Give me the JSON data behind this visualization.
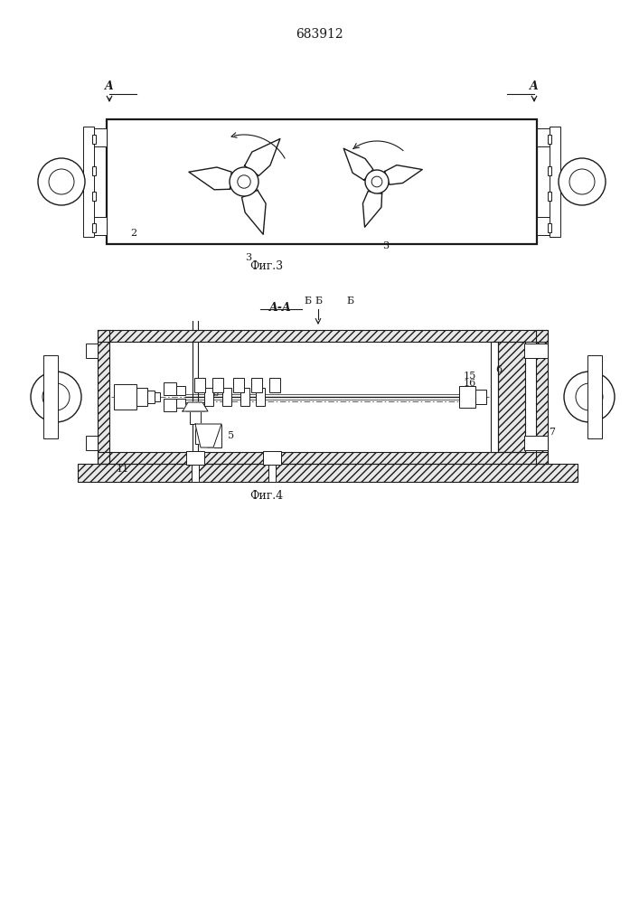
{
  "bg_color": "#ffffff",
  "line_color": "#1a1a1a",
  "title": "683912",
  "fig3_label": "Фиг.3",
  "fig4_label": "Фиг.4",
  "section_label": "A-A",
  "label_A_left": "A",
  "label_A_right": "A",
  "label_2": "2",
  "label_3a": "3",
  "label_3b": "3",
  "label_5": "5",
  "label_6": "6",
  "label_7": "7",
  "label_B": "Б",
  "label_11": "11",
  "label_15": "15",
  "label_16": "16"
}
